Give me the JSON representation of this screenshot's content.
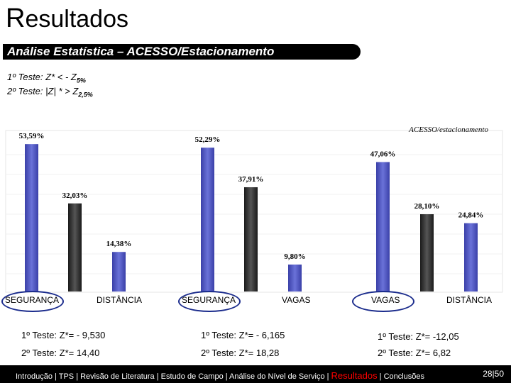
{
  "title": {
    "first": "R",
    "rest": "esultados"
  },
  "banner": "Análise Estatística – ACESSO/Estacionamento",
  "tests": {
    "t1_prefix": "1º Teste: Z* < - Z",
    "t1_sub": "5%",
    "t2_prefix": "2º Teste: |Z| * > Z",
    "t2_sub": "2,5%"
  },
  "chart_data": {
    "type": "bar",
    "title": "ACESSO/estacionamento",
    "ylim": [
      0,
      60
    ],
    "groups": [
      {
        "values": [
          53.59,
          32.03,
          14.38
        ],
        "labels": [
          "53,59%",
          "32,03%",
          "14,38%"
        ],
        "colors": [
          "#5b63c7",
          "#3a3a3a",
          "#5b63c7"
        ],
        "categories": [
          "SEGURANÇA",
          "DISTÂNCIA"
        ]
      },
      {
        "values": [
          52.29,
          37.91,
          9.8
        ],
        "labels": [
          "52,29%",
          "37,91%",
          "9,80%"
        ],
        "colors": [
          "#5b63c7",
          "#3a3a3a",
          "#5b63c7"
        ],
        "categories": [
          "SEGURANÇA",
          "VAGAS"
        ]
      },
      {
        "values": [
          47.06,
          28.1,
          24.84
        ],
        "labels": [
          "47,06%",
          "28,10%",
          "24,84%"
        ],
        "colors": [
          "#5b63c7",
          "#3a3a3a",
          "#5b63c7"
        ],
        "categories": [
          "VAGAS",
          "DISTÂNCIA"
        ]
      }
    ]
  },
  "results": [
    {
      "t1": "1º Teste: Z*= - 9,530",
      "t2": "2º Teste: Z*= 14,40"
    },
    {
      "t1": "1º Teste: Z*= - 6,165",
      "t2": "2º Teste: Z*= 18,28"
    },
    {
      "t1": "1º Teste: Z*= -12,05",
      "t2": "2º Teste: Z*= 6,82"
    }
  ],
  "footer": {
    "nav_before": "Introdução | TPS | Revisão de Literatura | Estudo de Campo | Análise do Nível de Serviço | ",
    "nav_active": "Resultados",
    "nav_after": " | Conclusões",
    "page": "28|50"
  }
}
